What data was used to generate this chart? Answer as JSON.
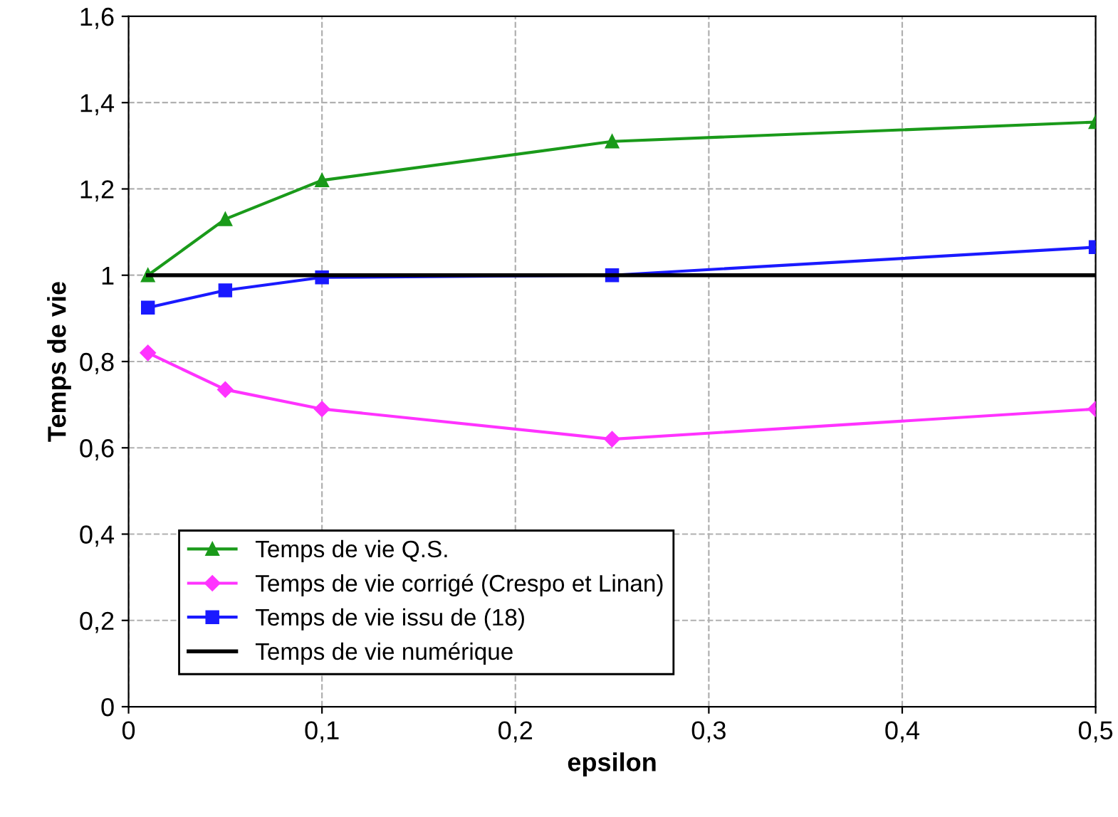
{
  "chart_data": {
    "type": "line",
    "xlabel": "epsilon",
    "ylabel": "Temps de vie",
    "series": [
      {
        "name": "Temps de vie Q.S.",
        "color": "#1a9a1a",
        "marker": "triangle",
        "x": [
          0.01,
          0.05,
          0.1,
          0.25,
          0.5
        ],
        "values": [
          1.0,
          1.13,
          1.22,
          1.31,
          1.355
        ]
      },
      {
        "name": "Temps de vie corrigé (Crespo et Linan)",
        "color": "#ff33ff",
        "marker": "diamond",
        "x": [
          0.01,
          0.05,
          0.1,
          0.25,
          0.5
        ],
        "values": [
          0.82,
          0.735,
          0.69,
          0.62,
          0.69
        ]
      },
      {
        "name": "Temps de vie issu de (18)",
        "color": "#1a1aff",
        "marker": "square",
        "x": [
          0.01,
          0.05,
          0.1,
          0.25,
          0.5
        ],
        "values": [
          0.925,
          0.965,
          0.995,
          1.0,
          1.065
        ]
      },
      {
        "name": "Temps de vie numérique",
        "color": "#000000",
        "marker": "none",
        "x": [
          0.01,
          0.5
        ],
        "values": [
          1.0,
          1.0
        ]
      }
    ],
    "xlim": [
      0,
      0.5
    ],
    "ylim": [
      0,
      1.6
    ],
    "xticks": [
      0,
      {
        "value": 0.1,
        "label": "0,1"
      },
      {
        "value": 0.2,
        "label": "0,2"
      },
      {
        "value": 0.3,
        "label": "0,3"
      },
      {
        "value": 0.4,
        "label": "0,4"
      },
      {
        "value": 0.5,
        "label": "0,5"
      }
    ],
    "yticks": [
      0,
      {
        "value": 0.2,
        "label": "0,2"
      },
      {
        "value": 0.4,
        "label": "0,4"
      },
      {
        "value": 0.6,
        "label": "0,6"
      },
      {
        "value": 0.8,
        "label": "0,8"
      },
      1,
      {
        "value": 1.2,
        "label": "1,2"
      },
      {
        "value": 1.4,
        "label": "1,4"
      },
      {
        "value": 1.6,
        "label": "1,6"
      }
    ],
    "grid": true,
    "legend": "bottom left",
    "line_style": "solid"
  }
}
